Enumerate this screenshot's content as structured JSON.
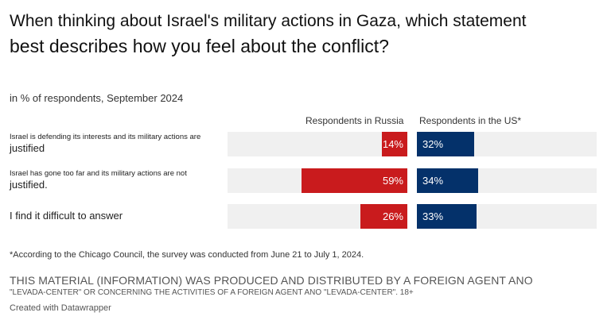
{
  "chart": {
    "title_line1": "When thinking about Israel's military actions in Gaza, which statement",
    "title_line2": "best describes how you feel about the conflict?",
    "subtitle": "in % of respondents, September 2024",
    "note": "*According to the Chicago Council, the survey was conducted from June 21 to July 1, 2024.",
    "legal_line1": "THIS MATERIAL (INFORMATION) WAS PRODUCED AND DISTRIBUTED BY A FOREIGN AGENT ANO",
    "legal_line2": "\"LEVADA-CENTER\" OR CONCERNING THE ACTIVITIES OF A FOREIGN AGENT ANO \"LEVADA-CENTER\". 18+",
    "credit": "Created with Datawrapper",
    "colors": {
      "russia": "#c91b1d",
      "us": "#04316a",
      "track": "#f0f0f0"
    }
  },
  "chart_data": {
    "type": "bar",
    "series": [
      {
        "name": "Respondents in Russia",
        "values": [
          14,
          59,
          26
        ],
        "labels": [
          "14%",
          "59%",
          "26%"
        ]
      },
      {
        "name": "Respondents in the US*",
        "values": [
          32,
          34,
          33
        ],
        "labels": [
          "32%",
          "34%",
          "33%"
        ]
      }
    ],
    "categories": [
      {
        "line1": "Israel is defending its interests and its military actions are",
        "line2": "justified"
      },
      {
        "line1": "Israel has gone too far and its military actions are not",
        "line2": "justified."
      },
      {
        "line1": "",
        "line2": "I find it difficult to answer"
      }
    ]
  }
}
